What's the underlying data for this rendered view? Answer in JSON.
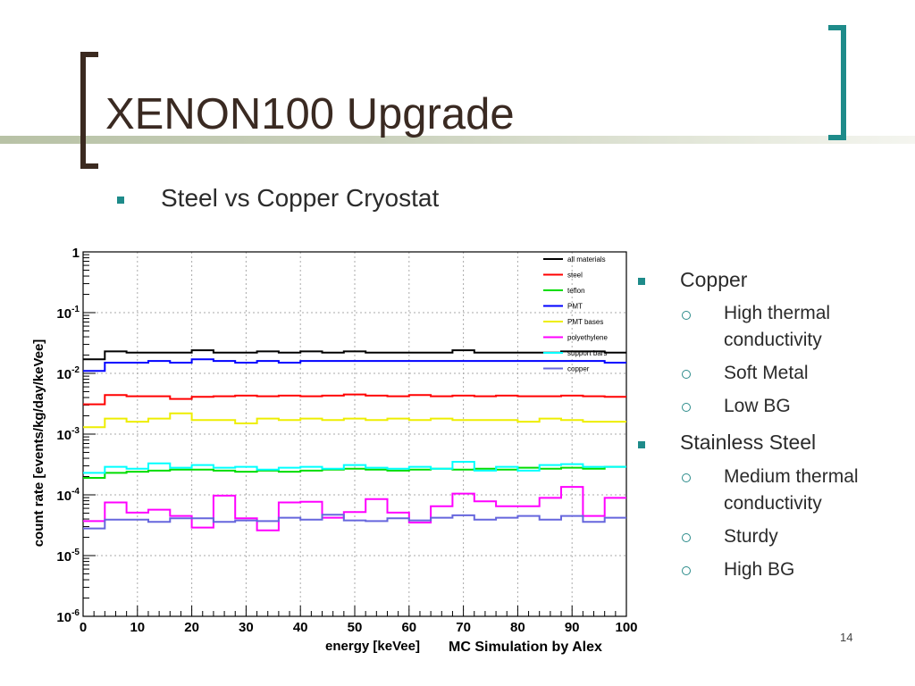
{
  "slide": {
    "title": "XENON100 Upgrade",
    "bullet_main": "Steel vs Copper Cryostat",
    "page_number": "14",
    "credit": "MC Simulation by Alex",
    "accent_color": "#1e8b8a",
    "bracket_left_color": "#3b2a20",
    "bracket_right_color": "#1e8b8a"
  },
  "right_list": [
    {
      "label": "Copper",
      "sub": [
        "High thermal conductivity",
        "Soft Metal",
        "Low BG"
      ]
    },
    {
      "label": "Stainless Steel",
      "sub": [
        "Medium thermal conductivity",
        "Sturdy",
        "High BG"
      ]
    }
  ],
  "chart_data": {
    "type": "line",
    "xlabel": "energy [keVee]",
    "ylabel": "count rate [events/kg/day/keVee]",
    "xlim": [
      0,
      100
    ],
    "ylim": [
      1e-06,
      1
    ],
    "yscale": "log",
    "grid": true,
    "legend_position": "top-right",
    "x_ticks": [
      "0",
      "10",
      "20",
      "30",
      "40",
      "50",
      "60",
      "70",
      "80",
      "90",
      "100"
    ],
    "y_ticks": [
      {
        "base": "1",
        "exp": ""
      },
      {
        "base": "10",
        "exp": "-1"
      },
      {
        "base": "10",
        "exp": "-2"
      },
      {
        "base": "10",
        "exp": "-3"
      },
      {
        "base": "10",
        "exp": "-4"
      },
      {
        "base": "10",
        "exp": "-5"
      },
      {
        "base": "10",
        "exp": "-6"
      }
    ],
    "bin_edges": [
      0,
      4,
      8,
      12,
      16,
      20,
      24,
      28,
      32,
      36,
      40,
      44,
      48,
      52,
      56,
      60,
      64,
      68,
      72,
      76,
      80,
      84,
      88,
      92,
      96,
      100
    ],
    "series": [
      {
        "name": "all materials",
        "color": "#000000",
        "values": [
          0.017,
          0.023,
          0.022,
          0.022,
          0.022,
          0.024,
          0.022,
          0.022,
          0.023,
          0.022,
          0.023,
          0.022,
          0.023,
          0.022,
          0.022,
          0.022,
          0.022,
          0.024,
          0.022,
          0.022,
          0.022,
          0.022,
          0.023,
          0.023,
          0.022
        ]
      },
      {
        "name": "steel",
        "color": "#ff0000",
        "values": [
          0.0031,
          0.0044,
          0.0042,
          0.0042,
          0.0038,
          0.0041,
          0.0042,
          0.0043,
          0.0042,
          0.0043,
          0.0042,
          0.0043,
          0.0045,
          0.0043,
          0.0042,
          0.0044,
          0.0042,
          0.0043,
          0.0042,
          0.0043,
          0.0042,
          0.0042,
          0.0043,
          0.0042,
          0.0041
        ]
      },
      {
        "name": "teflon",
        "color": "#00dd00",
        "values": [
          0.00019,
          0.00023,
          0.00024,
          0.00025,
          0.00026,
          0.00026,
          0.00025,
          0.00024,
          0.00025,
          0.00024,
          0.00025,
          0.00026,
          0.00027,
          0.00026,
          0.00025,
          0.00026,
          0.00027,
          0.00026,
          0.00027,
          0.00026,
          0.00028,
          0.00027,
          0.00028,
          0.00027,
          0.00029
        ]
      },
      {
        "name": "PMT",
        "color": "#0000ff",
        "values": [
          0.011,
          0.015,
          0.015,
          0.016,
          0.015,
          0.017,
          0.016,
          0.015,
          0.016,
          0.015,
          0.016,
          0.016,
          0.016,
          0.016,
          0.016,
          0.016,
          0.016,
          0.016,
          0.016,
          0.016,
          0.016,
          0.016,
          0.016,
          0.016,
          0.015
        ]
      },
      {
        "name": "PMT bases",
        "color": "#eeee00",
        "values": [
          0.0013,
          0.0018,
          0.0016,
          0.0018,
          0.0022,
          0.0017,
          0.0017,
          0.0015,
          0.0018,
          0.0017,
          0.0018,
          0.0017,
          0.0018,
          0.0017,
          0.0018,
          0.0017,
          0.0018,
          0.0017,
          0.0017,
          0.0017,
          0.0016,
          0.0018,
          0.0017,
          0.0016,
          0.0016
        ]
      },
      {
        "name": "polyethylene",
        "color": "#ff00ff",
        "values": [
          3.7e-05,
          7.5e-05,
          5.1e-05,
          5.7e-05,
          4.5e-05,
          2.9e-05,
          9.7e-05,
          4.1e-05,
          2.6e-05,
          7.5e-05,
          7.7e-05,
          4.2e-05,
          5.2e-05,
          8.5e-05,
          5.1e-05,
          3.5e-05,
          6.5e-05,
          0.000105,
          7.8e-05,
          6.5e-05,
          6.5e-05,
          8.9e-05,
          0.000135,
          4.5e-05,
          8.9e-05
        ]
      },
      {
        "name": "support bars",
        "color": "#00ffff",
        "values": [
          0.00023,
          0.00029,
          0.00027,
          0.00033,
          0.00028,
          0.00031,
          0.00028,
          0.00029,
          0.00026,
          0.00028,
          0.00029,
          0.00027,
          0.00031,
          0.00028,
          0.00027,
          0.00029,
          0.00027,
          0.00035,
          0.00025,
          0.00029,
          0.00025,
          0.00031,
          0.00032,
          0.00029,
          0.00029
        ]
      },
      {
        "name": "copper",
        "color": "#6666dd",
        "values": [
          2.8e-05,
          3.9e-05,
          3.9e-05,
          3.6e-05,
          4.1e-05,
          4.1e-05,
          3.6e-05,
          3.8e-05,
          3.7e-05,
          4.2e-05,
          3.9e-05,
          4.7e-05,
          3.8e-05,
          3.7e-05,
          4.1e-05,
          3.8e-05,
          4.2e-05,
          4.6e-05,
          3.9e-05,
          4.2e-05,
          4.5e-05,
          3.9e-05,
          4.5e-05,
          3.6e-05,
          4.2e-05
        ]
      }
    ]
  }
}
